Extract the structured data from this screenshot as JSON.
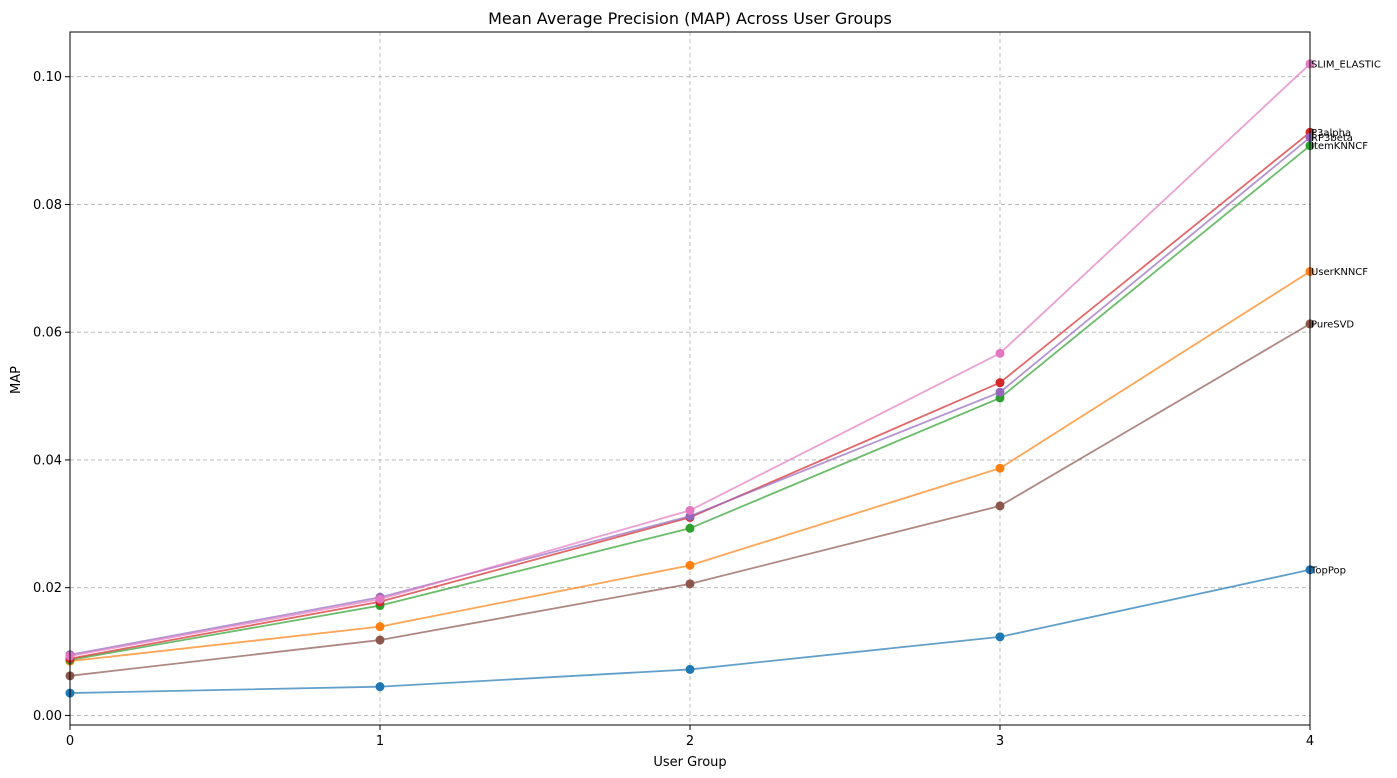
{
  "chart_data": {
    "type": "line",
    "title": "Mean Average Precision (MAP) Across User Groups",
    "xlabel": "User Group",
    "ylabel": "MAP",
    "x": [
      0,
      1,
      2,
      3,
      4
    ],
    "xlim": [
      0,
      4
    ],
    "ylim": [
      -0.0015,
      0.107
    ],
    "x_ticks": [
      0,
      1,
      2,
      3,
      4
    ],
    "y_ticks": [
      0.0,
      0.02,
      0.04,
      0.06,
      0.08,
      0.1
    ],
    "y_tick_labels": [
      "0.00",
      "0.02",
      "0.04",
      "0.06",
      "0.08",
      "0.10"
    ],
    "grid": true,
    "legend": "labels at line ends (right)",
    "series": [
      {
        "name": "TopPop",
        "color": "#1f77b4",
        "values": [
          0.0035,
          0.0045,
          0.0072,
          0.0123,
          0.0228
        ]
      },
      {
        "name": "UserKNNCF",
        "color": "#ff7f0e",
        "values": [
          0.0085,
          0.0139,
          0.0235,
          0.0387,
          0.0695
        ]
      },
      {
        "name": "ItemKNNCF",
        "color": "#2ca02c",
        "values": [
          0.0087,
          0.0172,
          0.0293,
          0.0497,
          0.0892
        ]
      },
      {
        "name": "P3alpha",
        "color": "#d62728",
        "values": [
          0.0089,
          0.0178,
          0.031,
          0.0521,
          0.0913
        ]
      },
      {
        "name": "RP3beta",
        "color": "#9467bd",
        "values": [
          0.0095,
          0.0185,
          0.0312,
          0.0506,
          0.0905
        ]
      },
      {
        "name": "PureSVD",
        "color": "#8c564b",
        "values": [
          0.0062,
          0.0118,
          0.0206,
          0.0328,
          0.0613
        ]
      },
      {
        "name": "SLIM_ELASTIC",
        "color": "#e377c2",
        "values": [
          0.0093,
          0.0182,
          0.0321,
          0.0567,
          0.102
        ]
      }
    ]
  }
}
